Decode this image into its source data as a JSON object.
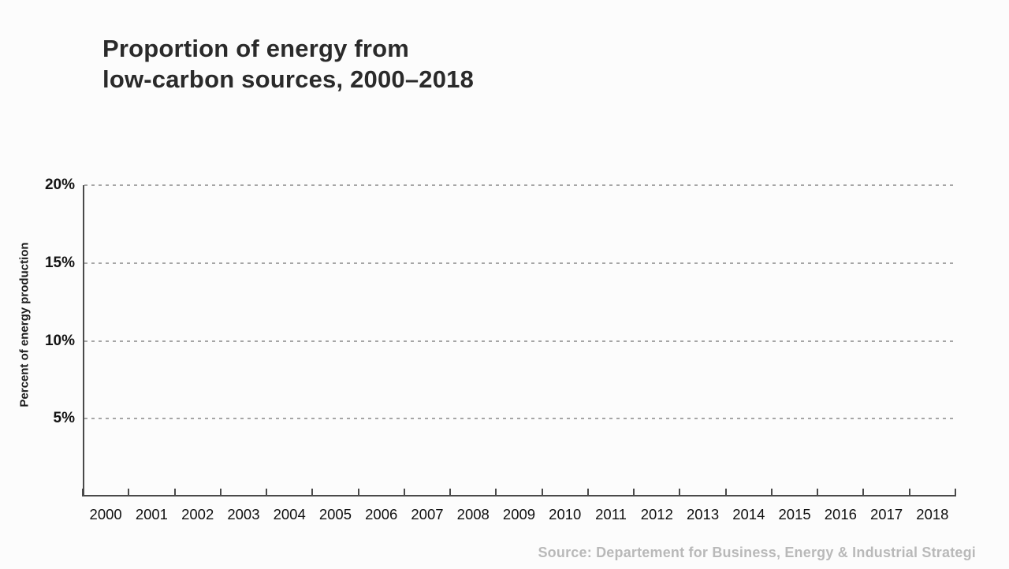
{
  "header": {
    "title_line1": "Proportion of energy from",
    "title_line2": "low-carbon sources, 2000–2018"
  },
  "footer": {
    "source": "Source: Departement for Business, Energy & Industrial Strategi"
  },
  "chart_data": {
    "type": "line",
    "title": "Proportion of energy from low-carbon sources, 2000–2018",
    "xlabel": "",
    "ylabel": "Percent of energy production",
    "categories": [
      "2000",
      "2001",
      "2002",
      "2003",
      "2004",
      "2005",
      "2006",
      "2007",
      "2008",
      "2009",
      "2010",
      "2011",
      "2012",
      "2013",
      "2014",
      "2015",
      "2016",
      "2017",
      "2018"
    ],
    "series": [],
    "ylim": [
      0,
      20
    ],
    "yticks": [
      5,
      10,
      15,
      20
    ],
    "ytick_labels": [
      "5%",
      "10%",
      "15%",
      "20%"
    ],
    "grid": "horizontal-dashed",
    "legend": "none"
  },
  "colors": {
    "bg": "#fcfcfc",
    "axis": "#4a4a4a",
    "grid": "#a6a6a6",
    "tick-text": "#141414",
    "title-text": "#2a2a2a",
    "source-text": "#b9b9b9"
  }
}
